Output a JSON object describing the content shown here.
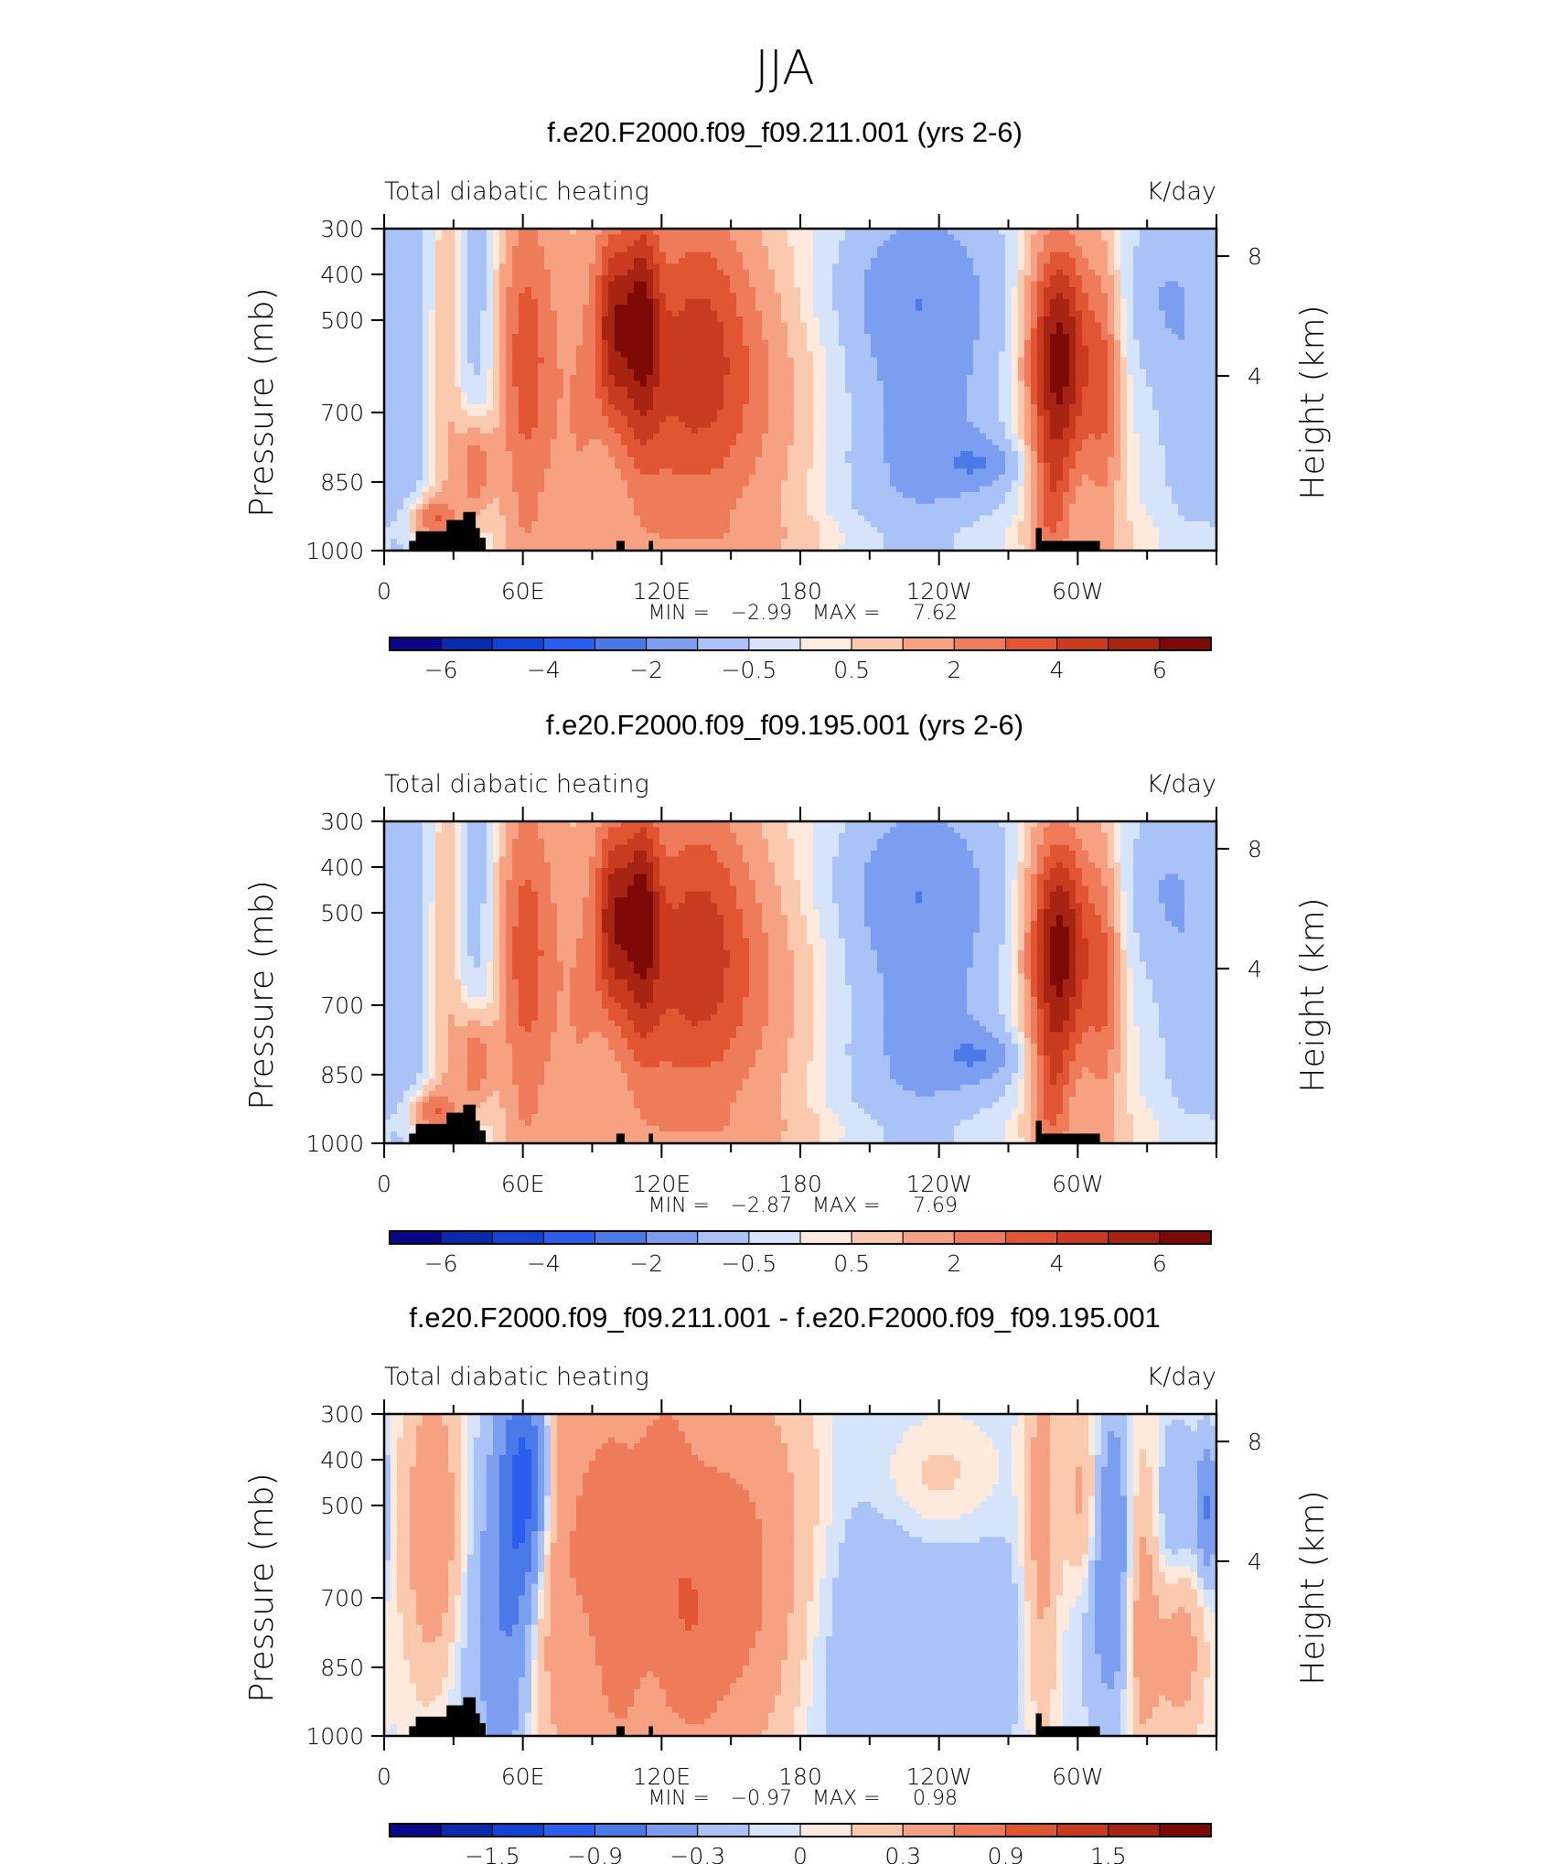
{
  "title": "JJA",
  "chart_data": [
    {
      "type": "heatmap",
      "title": "f.e20.F2000.f09_f09.211.001 (yrs 2-6)",
      "left_label": "Total diabatic heating",
      "right_label": "K/day",
      "ylabel": "Pressure (mb)",
      "ylabel_right": "Height (km)",
      "yticks": [
        "300",
        "400",
        "500",
        "700",
        "850",
        "1000"
      ],
      "yticks_right": [
        "8",
        "4"
      ],
      "xticks": [
        "0",
        "60E",
        "120E",
        "180",
        "120W",
        "60W"
      ],
      "stats": {
        "min_label": "MIN =",
        "min": "−2.99",
        "max_label": "MAX =",
        "max": "7.62"
      },
      "colorbar_labels": [
        "−6",
        "−4",
        "−2",
        "−0.5",
        "0.5",
        "2",
        "4",
        "6"
      ],
      "min_value": -2.99,
      "max_value": 7.62
    },
    {
      "type": "heatmap",
      "title": "f.e20.F2000.f09_f09.195.001 (yrs 2-6)",
      "left_label": "Total diabatic heating",
      "right_label": "K/day",
      "ylabel": "Pressure (mb)",
      "ylabel_right": "Height (km)",
      "yticks": [
        "300",
        "400",
        "500",
        "700",
        "850",
        "1000"
      ],
      "yticks_right": [
        "8",
        "4"
      ],
      "xticks": [
        "0",
        "60E",
        "120E",
        "180",
        "120W",
        "60W"
      ],
      "stats": {
        "min_label": "MIN =",
        "min": "−2.87",
        "max_label": "MAX =",
        "max": "7.69"
      },
      "colorbar_labels": [
        "−6",
        "−4",
        "−2",
        "−0.5",
        "0.5",
        "2",
        "4",
        "6"
      ],
      "min_value": -2.87,
      "max_value": 7.69
    },
    {
      "type": "heatmap",
      "title": "f.e20.F2000.f09_f09.211.001 - f.e20.F2000.f09_f09.195.001",
      "left_label": "Total diabatic heating",
      "right_label": "K/day",
      "ylabel": "Pressure (mb)",
      "ylabel_right": "Height (km)",
      "yticks": [
        "300",
        "400",
        "500",
        "700",
        "850",
        "1000"
      ],
      "yticks_right": [
        "8",
        "4"
      ],
      "xticks": [
        "0",
        "60E",
        "120E",
        "180",
        "120W",
        "60W"
      ],
      "stats": {
        "min_label": "MIN =",
        "min": "−0.97",
        "max_label": "MAX =",
        "max": "0.98"
      },
      "colorbar_labels": [
        "−1.5",
        "−0.9",
        "−0.3",
        "0",
        "0.3",
        "0.9",
        "1.5"
      ],
      "min_value": -0.97,
      "max_value": 0.98
    }
  ],
  "colors": {
    "palette": [
      "#08088a",
      "#0a2bb0",
      "#1242d6",
      "#2a5ef0",
      "#4a7ae8",
      "#7c9ef0",
      "#a9c2f7",
      "#d5e4fb",
      "#fdeadc",
      "#fbc9ae",
      "#f5a182",
      "#ee7b5a",
      "#e25533",
      "#c93a1f",
      "#a82412",
      "#7d0a06"
    ],
    "topography": "#000000"
  }
}
